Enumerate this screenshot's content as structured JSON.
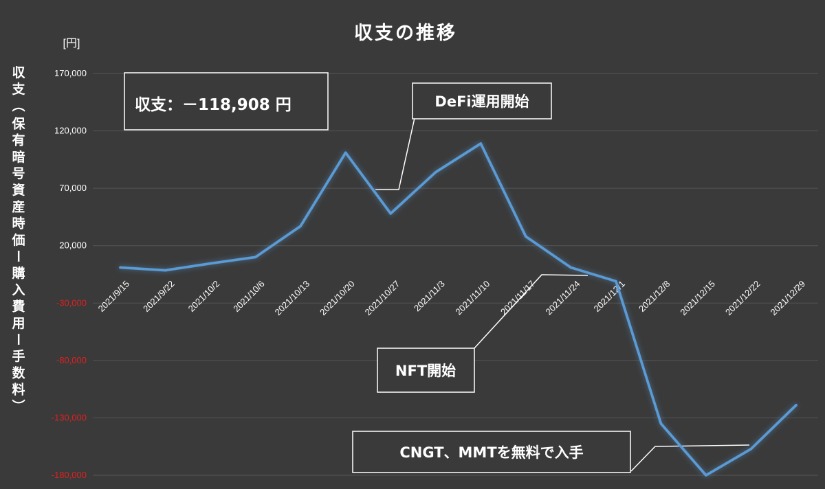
{
  "chart_data": {
    "type": "line",
    "title": "収支の推移",
    "unit_label": "[円]",
    "ylabel": "収支（保有暗号資産時価ー購入費用ー手数料）",
    "ylim": [
      -180000,
      170000
    ],
    "yticks": [
      170000,
      120000,
      70000,
      20000,
      -30000,
      -80000,
      -130000,
      -180000
    ],
    "ytick_labels": [
      "170,000",
      "120,000",
      "70,000",
      "20,000",
      "-30,000",
      "-80,000",
      "-130,000",
      "-180,000"
    ],
    "negative_color": "#e02020",
    "positive_color": "#ffffff",
    "line_color": "#5b9bd5",
    "grid": true,
    "categories": [
      "2021/9/15",
      "2021/9/22",
      "2021/10/2",
      "2021/10/6",
      "2021/10/13",
      "2021/10/20",
      "2021/10/27",
      "2021/11/3",
      "2021/11/10",
      "2021/11/17",
      "2021/11/24",
      "2021/12/1",
      "2021/12/8",
      "2021/12/15",
      "2021/12/22",
      "2021/12/29"
    ],
    "series": [
      {
        "values": [
          1000,
          -1500,
          4500,
          10000,
          37000,
          101000,
          48000,
          84000,
          109000,
          28000,
          1000,
          -11000,
          -135000,
          -180000,
          -157000,
          -118908
        ]
      }
    ],
    "annotations": [
      {
        "id": "summary",
        "text": "収支：－118,908 円"
      },
      {
        "id": "defi",
        "text": "DeFi運用開始"
      },
      {
        "id": "nft",
        "text": "NFT開始"
      },
      {
        "id": "cngt",
        "text": "CNGT、MMTを無料で入手"
      }
    ]
  }
}
